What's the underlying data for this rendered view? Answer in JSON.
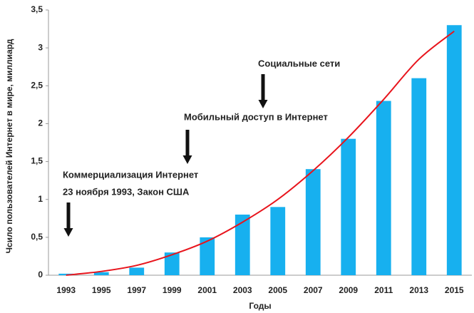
{
  "chart_data": {
    "type": "bar",
    "x_label": "Годы",
    "y_label": "Чсило пользователей Интернет в мире, миллиард",
    "categories": [
      "1993",
      "1995",
      "1997",
      "1999",
      "2001",
      "2003",
      "2005",
      "2007",
      "2009",
      "2011",
      "2013",
      "2015"
    ],
    "values": [
      0.02,
      0.04,
      0.1,
      0.3,
      0.5,
      0.8,
      0.9,
      1.4,
      1.8,
      2.3,
      2.6,
      3.3
    ],
    "color": "#17b0ef",
    "trend_values": [
      0.0,
      0.05,
      0.13,
      0.27,
      0.45,
      0.7,
      1.0,
      1.38,
      1.82,
      2.32,
      2.85,
      3.22
    ],
    "trend_color": "#e8141c",
    "ylim": [
      0,
      3.5
    ],
    "yticks": [
      0,
      {
        "value": 0.5,
        "label": "0,5"
      },
      1,
      {
        "value": 1.5,
        "label": "1,5"
      },
      2,
      {
        "value": 2.5,
        "label": "2,5"
      },
      3,
      {
        "value": 3.5,
        "label": "3,5"
      }
    ],
    "annotations": [
      "Социальные сети",
      "Мобильный доступ в Интернет",
      "Коммерциализация Интернет",
      "23 ноября 1993, Закон США"
    ]
  }
}
